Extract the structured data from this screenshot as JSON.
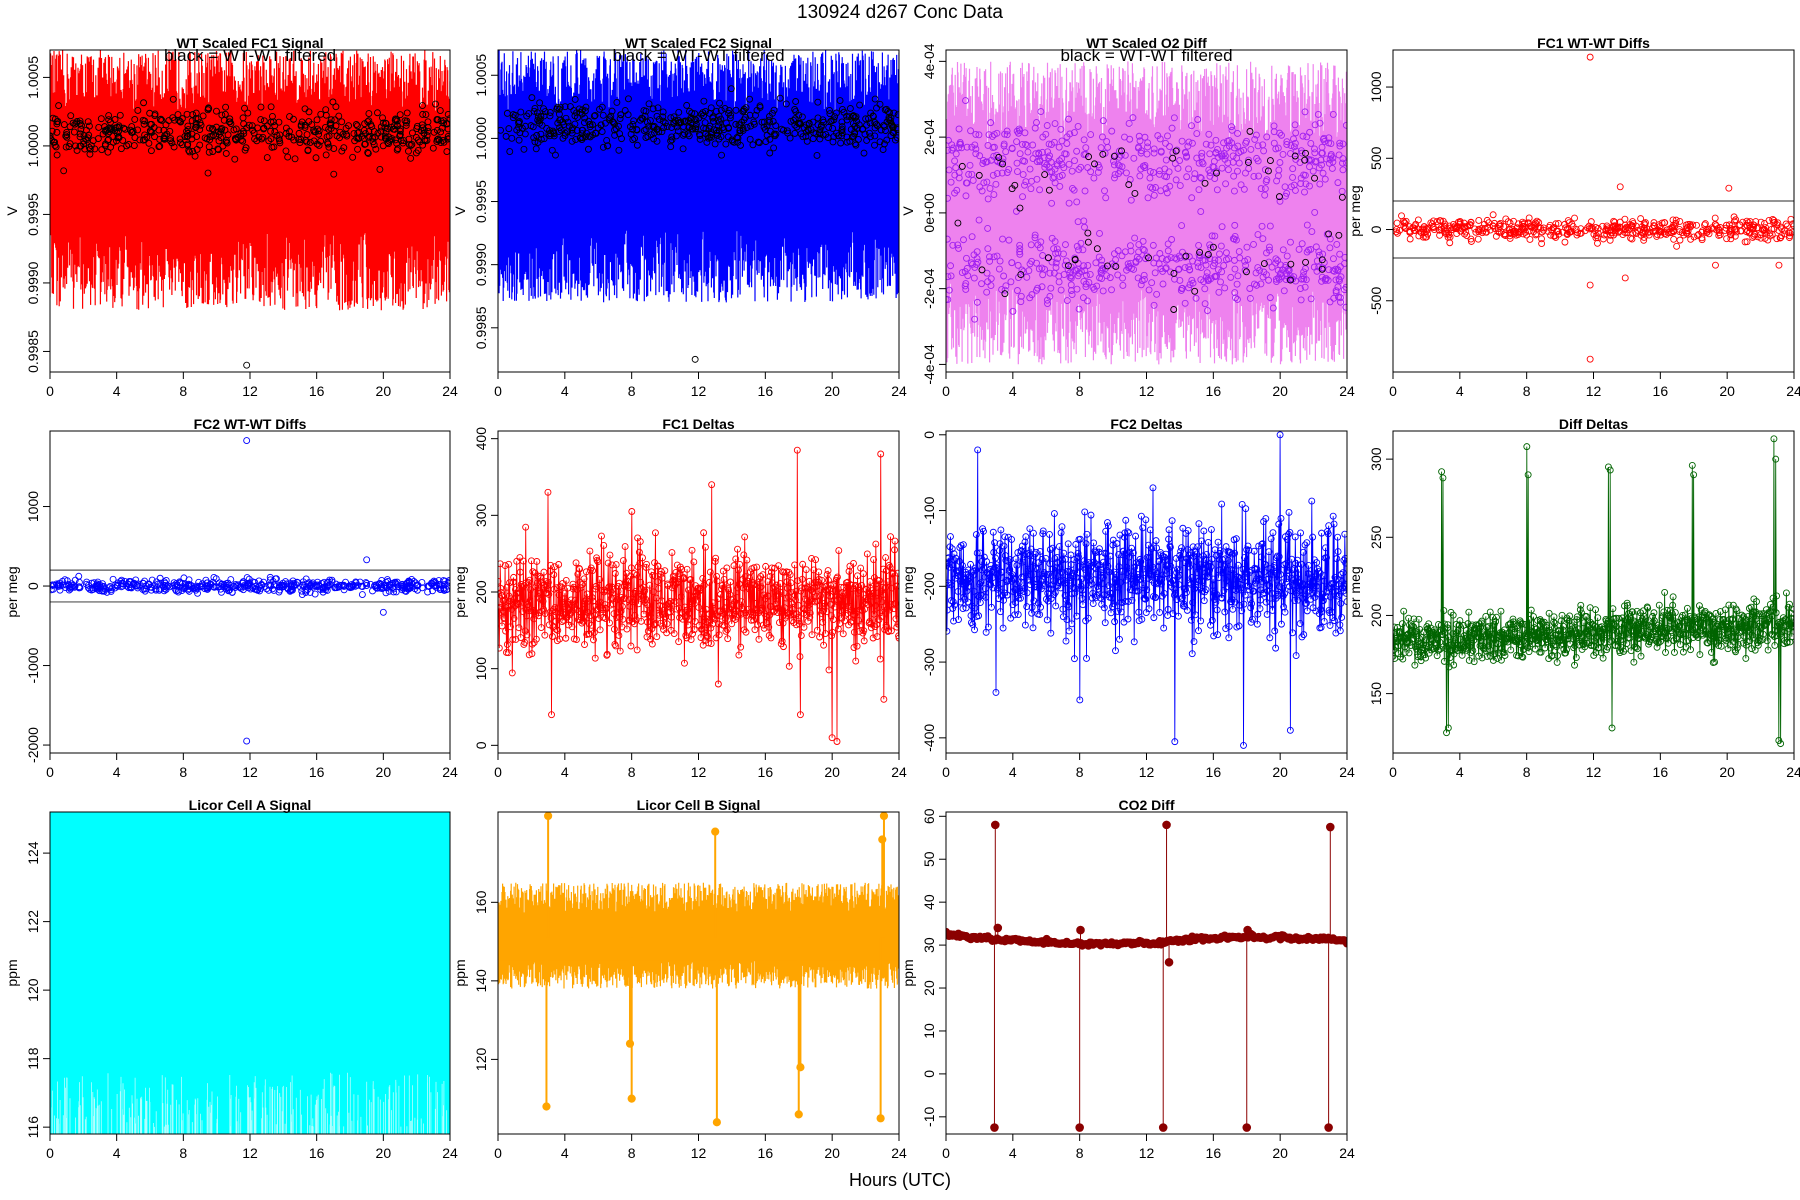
{
  "page": {
    "title": "130924    d267    Conc Data",
    "xlabel": "Hours (UTC)"
  },
  "chart_data": [
    {
      "id": "p1",
      "type": "line",
      "title": "WT Scaled FC1 Signal",
      "note": "black = WT-WT filtered",
      "ylabel": "V",
      "xlim": [
        0,
        24
      ],
      "ylim": [
        0.99835,
        1.0007
      ],
      "xticks": [
        0,
        4,
        8,
        12,
        16,
        20,
        24
      ],
      "xtick_labels": [
        "0",
        "4",
        "8",
        "12",
        "16",
        "20",
        "24"
      ],
      "yticks": [
        0.9985,
        0.999,
        0.9995,
        1.0,
        1.0005
      ],
      "ytick_labels": [
        "0.9985",
        "0.9990",
        "0.9995",
        "1.0000",
        "1.0005"
      ],
      "series": [
        {
          "style": "band",
          "color": "#ff0000",
          "center": 0.99985,
          "upper": 1.0007,
          "lower": 0.9988
        },
        {
          "style": "points",
          "color": "#000000",
          "center": 1.0001,
          "spread": 0.00016,
          "count": 520,
          "outliers": [
            [
              11.8,
              0.9984
            ]
          ]
        }
      ]
    },
    {
      "id": "p2",
      "type": "line",
      "title": "WT Scaled FC2 Signal",
      "note": "black = WT-WT filtered",
      "ylabel": "V",
      "xlim": [
        0,
        24
      ],
      "ylim": [
        0.99815,
        1.0007
      ],
      "xticks": [
        0,
        4,
        8,
        12,
        16,
        20,
        24
      ],
      "xtick_labels": [
        "0",
        "4",
        "8",
        "12",
        "16",
        "20",
        "24"
      ],
      "yticks": [
        0.9985,
        0.999,
        0.9995,
        1.0,
        1.0005
      ],
      "ytick_labels": [
        "0.9985",
        "0.9990",
        "0.9995",
        "1.0000",
        "1.0005"
      ],
      "series": [
        {
          "style": "band",
          "color": "#0000ff",
          "center": 0.99975,
          "upper": 1.0007,
          "lower": 0.9987
        },
        {
          "style": "points",
          "color": "#000000",
          "center": 1.0001,
          "spread": 0.00016,
          "count": 520,
          "outliers": [
            [
              11.8,
              0.99825
            ]
          ]
        }
      ]
    },
    {
      "id": "p3",
      "type": "line",
      "title": "WT Scaled O2 Diff",
      "note": "black = WT-WT filtered",
      "ylabel": "V",
      "xlim": [
        0,
        24
      ],
      "ylim": [
        -0.00042,
        0.00043
      ],
      "xticks": [
        0,
        4,
        8,
        12,
        16,
        20,
        24
      ],
      "xtick_labels": [
        "0",
        "4",
        "8",
        "12",
        "16",
        "20",
        "24"
      ],
      "yticks": [
        -0.0004,
        -0.0002,
        0,
        0.0002,
        0.0004
      ],
      "ytick_labels": [
        "-4e-04",
        "-2e-04",
        "0e+00",
        "2e-04",
        "4e-04"
      ],
      "series": [
        {
          "style": "band",
          "color": "#ee82ee",
          "center": 0.0,
          "upper": 0.0004,
          "lower": -0.0004
        },
        {
          "style": "points",
          "color": "#a020f0",
          "center": 0.0,
          "spread": 0.00022,
          "count": 900,
          "bimodal": true
        },
        {
          "style": "points",
          "color": "#000000",
          "center": 0.0,
          "spread": 0.0002,
          "count": 60,
          "bimodal": true
        }
      ]
    },
    {
      "id": "p4",
      "type": "scatter",
      "title": "FC1 WT-WT Diffs",
      "note": "",
      "ylabel": "per meg",
      "xlim": [
        0,
        24
      ],
      "ylim": [
        -1000,
        1260
      ],
      "xticks": [
        0,
        4,
        8,
        12,
        16,
        20,
        24
      ],
      "xtick_labels": [
        "0",
        "4",
        "8",
        "12",
        "16",
        "20",
        "24"
      ],
      "yticks": [
        -500,
        0,
        500,
        1000
      ],
      "ytick_labels": [
        "-500",
        "0",
        "500",
        "1000"
      ],
      "hlines": [
        200,
        -200
      ],
      "series": [
        {
          "style": "points",
          "color": "#ff0000",
          "center": 0,
          "spread": 65,
          "count": 520,
          "outliers": [
            [
              11.8,
              1210
            ],
            [
              11.8,
              -910
            ],
            [
              11.8,
              -390
            ],
            [
              13.6,
              300
            ],
            [
              20.1,
              290
            ],
            [
              19.3,
              -250
            ],
            [
              23.1,
              -250
            ],
            [
              13.9,
              -340
            ]
          ]
        }
      ]
    },
    {
      "id": "p5",
      "type": "scatter",
      "title": "FC2 WT-WT Diffs",
      "note": "",
      "ylabel": "per meg",
      "xlim": [
        0,
        24
      ],
      "ylim": [
        -2100,
        1950
      ],
      "xticks": [
        0,
        4,
        8,
        12,
        16,
        20,
        24
      ],
      "xtick_labels": [
        "0",
        "4",
        "8",
        "12",
        "16",
        "20",
        "24"
      ],
      "yticks": [
        -2000,
        -1000,
        0,
        1000
      ],
      "ytick_labels": [
        "-2000",
        "-1000",
        "0",
        "1000"
      ],
      "hlines": [
        200,
        -200
      ],
      "series": [
        {
          "style": "points",
          "color": "#0000ff",
          "center": 0,
          "spread": 70,
          "count": 520,
          "outliers": [
            [
              11.8,
              1830
            ],
            [
              11.8,
              -1950
            ],
            [
              19.0,
              330
            ],
            [
              20.0,
              -330
            ]
          ]
        }
      ]
    },
    {
      "id": "p6",
      "type": "line",
      "title": "FC1 Deltas",
      "note": "",
      "ylabel": "per meg",
      "xlim": [
        0,
        24
      ],
      "ylim": [
        -10,
        410
      ],
      "xticks": [
        0,
        4,
        8,
        12,
        16,
        20,
        24
      ],
      "xtick_labels": [
        "0",
        "4",
        "8",
        "12",
        "16",
        "20",
        "24"
      ],
      "yticks": [
        0,
        100,
        200,
        300,
        400
      ],
      "ytick_labels": [
        "0",
        "100",
        "200",
        "300",
        "400"
      ],
      "series": [
        {
          "style": "linepoints",
          "color": "#ff0000",
          "center": 185,
          "spread": 32,
          "count": 900,
          "spikes": [
            [
              3.0,
              330
            ],
            [
              3.2,
              40
            ],
            [
              8.0,
              305
            ],
            [
              12.8,
              340
            ],
            [
              13.2,
              80
            ],
            [
              17.9,
              385
            ],
            [
              18.1,
              40
            ],
            [
              20.0,
              10
            ],
            [
              20.3,
              5
            ],
            [
              22.9,
              380
            ],
            [
              23.1,
              60
            ]
          ]
        }
      ]
    },
    {
      "id": "p7",
      "type": "line",
      "title": "FC2 Deltas",
      "note": "",
      "ylabel": "per meg",
      "xlim": [
        0,
        24
      ],
      "ylim": [
        -420,
        5
      ],
      "xticks": [
        0,
        4,
        8,
        12,
        16,
        20,
        24
      ],
      "xtick_labels": [
        "0",
        "4",
        "8",
        "12",
        "16",
        "20",
        "24"
      ],
      "yticks": [
        -400,
        -300,
        -200,
        -100,
        0
      ],
      "ytick_labels": [
        "-400",
        "-300",
        "-200",
        "-100",
        "0"
      ],
      "series": [
        {
          "style": "linepoints",
          "color": "#0000ff",
          "center": -190,
          "spread": 35,
          "count": 900,
          "spikes": [
            [
              1.9,
              -20
            ],
            [
              3.0,
              -340
            ],
            [
              8.0,
              -350
            ],
            [
              12.4,
              -70
            ],
            [
              13.7,
              -405
            ],
            [
              17.8,
              -410
            ],
            [
              20.0,
              0
            ],
            [
              20.6,
              -390
            ],
            [
              22.9,
              -120
            ]
          ]
        }
      ]
    },
    {
      "id": "p8",
      "type": "line",
      "title": "Diff Deltas",
      "note": "",
      "ylabel": "per meg",
      "xlim": [
        0,
        24
      ],
      "ylim": [
        112,
        318
      ],
      "xticks": [
        0,
        4,
        8,
        12,
        16,
        20,
        24
      ],
      "xtick_labels": [
        "0",
        "4",
        "8",
        "12",
        "16",
        "20",
        "24"
      ],
      "yticks": [
        150,
        200,
        250,
        300
      ],
      "ytick_labels": [
        "150",
        "200",
        "250",
        "300"
      ],
      "series": [
        {
          "style": "linepoints",
          "color": "#006400",
          "center": 183,
          "spread": 8,
          "count": 900,
          "trend": 12,
          "spikes": [
            [
              2.9,
              292
            ],
            [
              3.0,
              288
            ],
            [
              3.2,
              125
            ],
            [
              3.3,
              128
            ],
            [
              8.0,
              308
            ],
            [
              8.1,
              290
            ],
            [
              12.9,
              295
            ],
            [
              13.0,
              293
            ],
            [
              13.1,
              128
            ],
            [
              17.9,
              296
            ],
            [
              18.0,
              290
            ],
            [
              22.8,
              313
            ],
            [
              22.9,
              300
            ],
            [
              23.1,
              120
            ],
            [
              23.2,
              118
            ]
          ]
        }
      ]
    },
    {
      "id": "p9",
      "type": "line",
      "title": "Licor Cell A Signal",
      "note": "",
      "ylabel": "ppm",
      "xlim": [
        0,
        24
      ],
      "ylim": [
        115.8,
        125.2
      ],
      "xticks": [
        0,
        4,
        8,
        12,
        16,
        20,
        24
      ],
      "xtick_labels": [
        "0",
        "4",
        "8",
        "12",
        "16",
        "20",
        "24"
      ],
      "yticks": [
        116,
        118,
        120,
        122,
        124
      ],
      "ytick_labels": [
        "116",
        "118",
        "120",
        "122",
        "124"
      ],
      "series": [
        {
          "style": "fill",
          "color": "#00ffff",
          "upper": 125.2,
          "lower": 115.8,
          "ragged_min": 116.0,
          "ragged_max": 117.6
        }
      ]
    },
    {
      "id": "p10",
      "type": "line",
      "title": "Licor Cell B Signal",
      "note": "",
      "ylabel": "ppm",
      "xlim": [
        0,
        24
      ],
      "ylim": [
        101,
        183
      ],
      "xticks": [
        0,
        4,
        8,
        12,
        16,
        20,
        24
      ],
      "xtick_labels": [
        "0",
        "4",
        "8",
        "12",
        "16",
        "20",
        "24"
      ],
      "yticks": [
        120,
        140,
        160
      ],
      "ytick_labels": [
        "120",
        "140",
        "160"
      ],
      "series": [
        {
          "style": "band",
          "color": "#ffa500",
          "center": 151,
          "upper": 165,
          "lower": 138,
          "spikes": [
            [
              3.0,
              182
            ],
            [
              2.9,
              108
            ],
            [
              8.0,
              110
            ],
            [
              7.9,
              124
            ],
            [
              13.0,
              178
            ],
            [
              13.1,
              104
            ],
            [
              18.0,
              106
            ],
            [
              18.1,
              118
            ],
            [
              22.9,
              105
            ],
            [
              23.0,
              176
            ],
            [
              23.1,
              182
            ]
          ]
        }
      ]
    },
    {
      "id": "p11",
      "type": "line",
      "title": "CO2 Diff",
      "note": "",
      "ylabel": "ppm",
      "xlim": [
        0,
        24
      ],
      "ylim": [
        -14,
        61
      ],
      "xticks": [
        0,
        4,
        8,
        12,
        16,
        20,
        24
      ],
      "xtick_labels": [
        "0",
        "4",
        "8",
        "12",
        "16",
        "20",
        "24"
      ],
      "yticks": [
        -10,
        0,
        10,
        20,
        30,
        40,
        50,
        60
      ],
      "ytick_labels": [
        "-10",
        "0",
        "10",
        "20",
        "30",
        "40",
        "50",
        "60"
      ],
      "series": [
        {
          "style": "co2",
          "color": "#8b0000",
          "baseline": [
            [
              0,
              32.5
            ],
            [
              3,
              31.3
            ],
            [
              8,
              30.3
            ],
            [
              12.9,
              30.5
            ],
            [
              13.3,
              31.0
            ],
            [
              18,
              32.0
            ],
            [
              23,
              31.3
            ],
            [
              24,
              30.8
            ]
          ],
          "spikes": [
            [
              2.9,
              -12.5
            ],
            [
              2.95,
              58
            ],
            [
              3.1,
              34
            ],
            [
              8.0,
              -12.5
            ],
            [
              8.05,
              33.5
            ],
            [
              13.0,
              -12.5
            ],
            [
              13.2,
              58
            ],
            [
              13.35,
              26
            ],
            [
              18.0,
              -12.5
            ],
            [
              18.05,
              33.5
            ],
            [
              22.9,
              -12.5
            ],
            [
              23.0,
              57.5
            ]
          ]
        }
      ]
    }
  ]
}
